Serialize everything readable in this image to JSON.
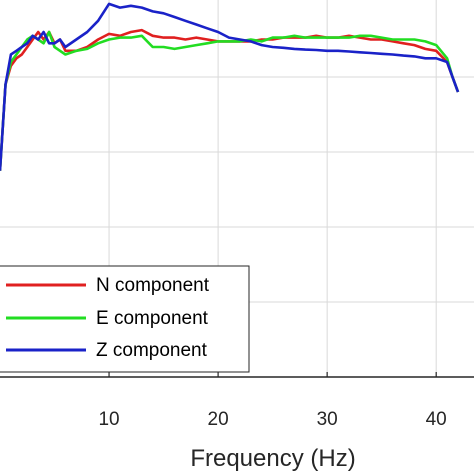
{
  "chart_data": {
    "type": "line",
    "xlabel": "Frequency (Hz)",
    "ylabel": "",
    "xlim": [
      0,
      42
    ],
    "ylim": [
      0,
      1
    ],
    "x_ticks": [
      10,
      20,
      30,
      40
    ],
    "grid": true,
    "legend": "bottom-left",
    "series": [
      {
        "name": "N component",
        "color": "#e02020",
        "x": [
          0,
          0.5,
          1,
          1.5,
          2,
          2.5,
          3,
          3.5,
          4,
          4.5,
          5,
          5.5,
          6,
          7,
          8,
          9,
          10,
          11,
          12,
          13,
          14,
          15,
          16,
          17,
          18,
          19,
          20,
          21,
          22,
          23,
          24,
          25,
          26,
          27,
          28,
          29,
          30,
          31,
          32,
          33,
          34,
          35,
          36,
          37,
          38,
          39,
          40,
          41,
          41.5,
          42
        ],
        "y": [
          0.55,
          0.78,
          0.83,
          0.85,
          0.86,
          0.88,
          0.9,
          0.92,
          0.9,
          0.92,
          0.89,
          0.9,
          0.87,
          0.87,
          0.88,
          0.9,
          0.915,
          0.91,
          0.92,
          0.925,
          0.91,
          0.905,
          0.905,
          0.9,
          0.905,
          0.9,
          0.895,
          0.895,
          0.895,
          0.895,
          0.9,
          0.9,
          0.905,
          0.905,
          0.905,
          0.91,
          0.905,
          0.905,
          0.91,
          0.905,
          0.9,
          0.9,
          0.895,
          0.89,
          0.885,
          0.875,
          0.87,
          0.84,
          0.8,
          0.76
        ]
      },
      {
        "name": "E component",
        "color": "#22dd22",
        "x": [
          0,
          0.5,
          1,
          1.5,
          2,
          2.5,
          3,
          3.5,
          4,
          4.5,
          5,
          5.5,
          6,
          7,
          8,
          9,
          10,
          11,
          12,
          13,
          14,
          15,
          16,
          17,
          18,
          19,
          20,
          21,
          22,
          23,
          24,
          25,
          26,
          27,
          28,
          29,
          30,
          31,
          32,
          33,
          34,
          35,
          36,
          37,
          38,
          39,
          40,
          41,
          41.5,
          42
        ],
        "y": [
          0.55,
          0.78,
          0.84,
          0.86,
          0.88,
          0.9,
          0.91,
          0.9,
          0.89,
          0.92,
          0.88,
          0.87,
          0.86,
          0.87,
          0.875,
          0.89,
          0.9,
          0.905,
          0.905,
          0.91,
          0.88,
          0.88,
          0.875,
          0.88,
          0.885,
          0.89,
          0.895,
          0.895,
          0.895,
          0.9,
          0.895,
          0.905,
          0.905,
          0.91,
          0.905,
          0.905,
          0.905,
          0.905,
          0.905,
          0.91,
          0.91,
          0.905,
          0.9,
          0.9,
          0.9,
          0.895,
          0.885,
          0.85,
          0.8,
          0.76
        ]
      },
      {
        "name": "Z component",
        "color": "#1a22c8",
        "x": [
          0,
          0.5,
          1,
          1.5,
          2,
          2.5,
          3,
          3.5,
          4,
          4.5,
          5,
          5.5,
          6,
          7,
          8,
          9,
          10,
          11,
          12,
          13,
          14,
          15,
          16,
          17,
          18,
          19,
          20,
          21,
          22,
          23,
          24,
          25,
          26,
          27,
          28,
          29,
          30,
          31,
          32,
          33,
          34,
          35,
          36,
          37,
          38,
          39,
          40,
          41,
          41.5,
          42
        ],
        "y": [
          0.55,
          0.78,
          0.86,
          0.87,
          0.88,
          0.89,
          0.91,
          0.9,
          0.92,
          0.89,
          0.89,
          0.9,
          0.88,
          0.9,
          0.92,
          0.95,
          0.995,
          0.985,
          0.99,
          0.985,
          0.975,
          0.97,
          0.96,
          0.95,
          0.94,
          0.93,
          0.92,
          0.905,
          0.9,
          0.895,
          0.885,
          0.88,
          0.878,
          0.875,
          0.873,
          0.872,
          0.87,
          0.87,
          0.868,
          0.866,
          0.864,
          0.862,
          0.86,
          0.857,
          0.855,
          0.85,
          0.85,
          0.84,
          0.8,
          0.76
        ]
      }
    ]
  }
}
